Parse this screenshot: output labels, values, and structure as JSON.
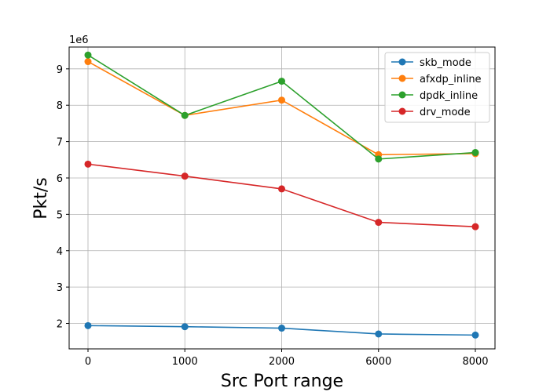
{
  "chart_data": {
    "type": "line",
    "title": "",
    "xlabel": "Src Port range",
    "ylabel": "Pkt/s",
    "y_offset_text": "1e6",
    "y_multiplier": 1000000,
    "categories": [
      "0",
      "1000",
      "2000",
      "6000",
      "8000"
    ],
    "ylim": [
      1.3,
      9.6
    ],
    "yticks": [
      2,
      3,
      4,
      5,
      6,
      7,
      8,
      9
    ],
    "grid": true,
    "legend_position": "top-right",
    "series": [
      {
        "name": "skb_mode",
        "color": "#1f77b4",
        "values": [
          1.94,
          1.91,
          1.87,
          1.71,
          1.68
        ]
      },
      {
        "name": "afxdp_inline",
        "color": "#ff7f0e",
        "values": [
          9.2,
          7.72,
          8.14,
          6.64,
          6.67
        ]
      },
      {
        "name": "dpdk_inline",
        "color": "#2ca02c",
        "values": [
          9.38,
          7.72,
          8.66,
          6.52,
          6.7
        ]
      },
      {
        "name": "drv_mode",
        "color": "#d62728",
        "values": [
          6.38,
          6.05,
          5.7,
          4.78,
          4.66
        ]
      }
    ]
  }
}
